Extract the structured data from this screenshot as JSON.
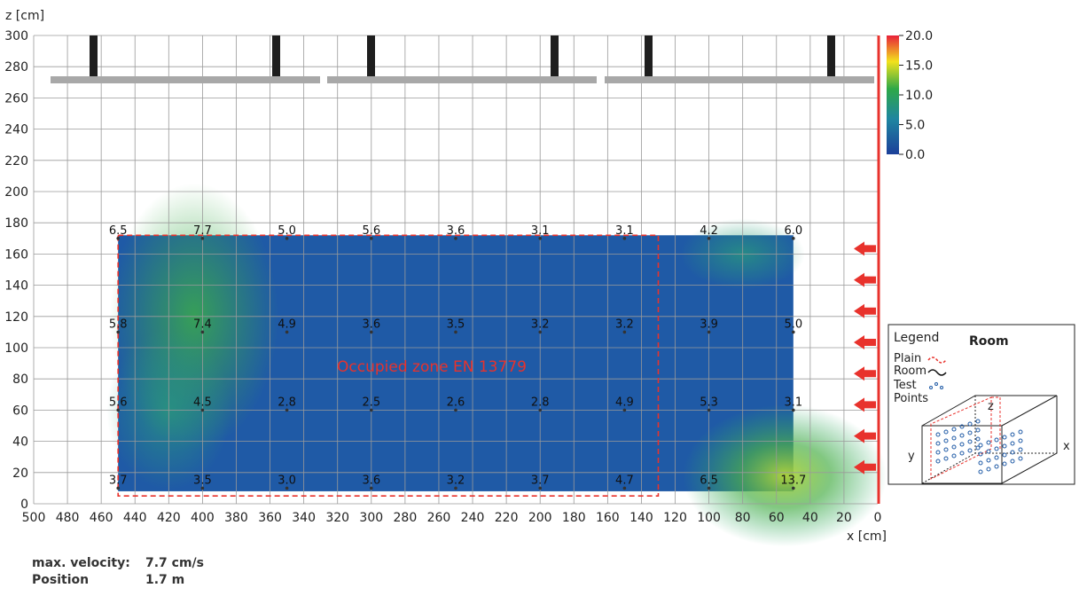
{
  "chart_data": {
    "type": "heatmap",
    "xlabel": "x [cm]",
    "ylabel": "z [cm]",
    "xlim": [
      500,
      0
    ],
    "ylim": [
      0,
      300
    ],
    "x_ticks": [
      "500",
      "480",
      "460",
      "440",
      "420",
      "400",
      "380",
      "360",
      "340",
      "320",
      "300",
      "280",
      "260",
      "240",
      "220",
      "200",
      "180",
      "160",
      "140",
      "120",
      "100",
      "80",
      "60",
      "40",
      "20",
      "0"
    ],
    "y_ticks": [
      "0",
      "20",
      "40",
      "60",
      "80",
      "100",
      "120",
      "140",
      "160",
      "180",
      "200",
      "220",
      "240",
      "260",
      "280",
      "300"
    ],
    "grid": true,
    "measurement_x": [
      450,
      400,
      350,
      300,
      250,
      200,
      150,
      100,
      50
    ],
    "measurement_z": [
      170,
      110,
      60,
      10
    ],
    "rows": [
      {
        "z": 170,
        "values": [
          "6.5",
          "7.7",
          "5.0",
          "5.6",
          "3.6",
          "3.1",
          "3.1",
          "4.2",
          "6.0"
        ]
      },
      {
        "z": 110,
        "values": [
          "5.8",
          "7.4",
          "4.9",
          "3.6",
          "3.5",
          "3.2",
          "3.2",
          "3.9",
          "5.0"
        ]
      },
      {
        "z": 60,
        "values": [
          "5.6",
          "4.5",
          "2.8",
          "2.5",
          "2.6",
          "2.8",
          "4.9",
          "5.3",
          "3.1"
        ]
      },
      {
        "z": 10,
        "values": [
          "3.7",
          "3.5",
          "3.0",
          "3.6",
          "3.2",
          "3.7",
          "4.7",
          "6.5",
          "13.7"
        ]
      }
    ],
    "colorbar": {
      "range": [
        0,
        20
      ],
      "ticks": [
        "20.0",
        "15.0",
        "10.0",
        "5.0",
        "0.0"
      ],
      "colors": [
        "#e8213a",
        "#f5e21c",
        "#2aa843",
        "#1c4fa0"
      ]
    },
    "zone_label": "Occupied zone EN 13779",
    "zone": {
      "x_from": 450,
      "x_to": 130,
      "z_from": 5,
      "z_to": 172
    }
  },
  "legend": {
    "title": "Legend",
    "room_heading": "Room",
    "items": [
      "Plain",
      "Room",
      "Test",
      "Points"
    ],
    "axis_x": "x",
    "axis_y": "y",
    "axis_z": "z"
  },
  "info": {
    "velocity_label": "max. velocity:",
    "velocity_value": "7.7 cm/s",
    "position_label": "Position",
    "position_value": "1.7 m"
  },
  "colors": {
    "accent_red": "#e8322c",
    "grid": "#9a9a9a",
    "ceiling_bar": "#a8a8a8",
    "hanger": "#1e1e1e",
    "field_base": "#1f5aa6"
  }
}
